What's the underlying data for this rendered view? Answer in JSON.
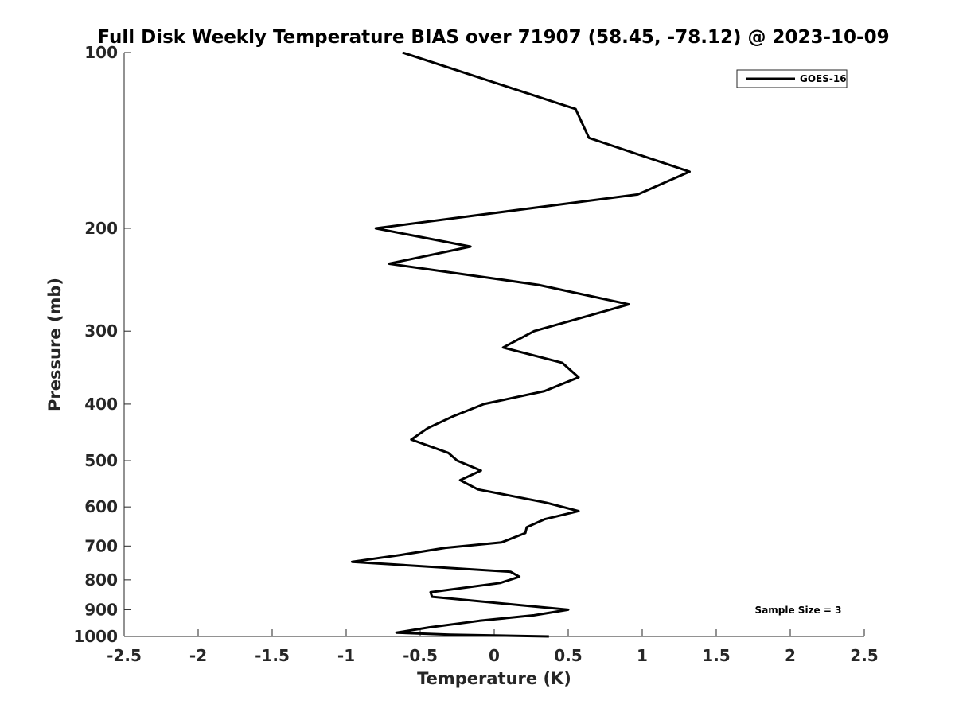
{
  "chart_data": {
    "type": "line",
    "title": "Full Disk Weekly Temperature BIAS over 71907 (58.45, -78.12) @ 2023-10-09",
    "xlabel": "Temperature (K)",
    "ylabel": "Pressure (mb)",
    "xlim": [
      -2.5,
      2.5
    ],
    "ylim": [
      100,
      1000
    ],
    "y_scale": "log",
    "y_direction": "reversed",
    "grid": false,
    "legend_position": "top-right",
    "x_ticks": [
      -2.5,
      -2,
      -1.5,
      -1,
      -0.5,
      0,
      0.5,
      1,
      1.5,
      2,
      2.5
    ],
    "x_tick_labels": [
      "-2.5",
      "-2",
      "-1.5",
      "-1",
      "-0.5",
      "0",
      "0.5",
      "1",
      "1.5",
      "2",
      "2.5"
    ],
    "y_ticks": [
      100,
      200,
      300,
      400,
      500,
      600,
      700,
      800,
      900,
      1000
    ],
    "y_tick_labels": [
      "100",
      "200",
      "300",
      "400",
      "500",
      "600",
      "700",
      "800",
      "900",
      "1000"
    ],
    "annotation": "Sample Size = 3",
    "series": [
      {
        "name": "GOES-16",
        "color": "#000000",
        "points": [
          {
            "x": -0.62,
            "p": 100
          },
          {
            "x": 0.55,
            "p": 125
          },
          {
            "x": 0.64,
            "p": 140
          },
          {
            "x": 1.32,
            "p": 160
          },
          {
            "x": 0.97,
            "p": 175
          },
          {
            "x": -0.8,
            "p": 200
          },
          {
            "x": -0.16,
            "p": 215
          },
          {
            "x": -0.71,
            "p": 230
          },
          {
            "x": 0.3,
            "p": 250
          },
          {
            "x": 0.91,
            "p": 270
          },
          {
            "x": 0.27,
            "p": 300
          },
          {
            "x": 0.06,
            "p": 320
          },
          {
            "x": 0.46,
            "p": 340
          },
          {
            "x": 0.57,
            "p": 360
          },
          {
            "x": 0.34,
            "p": 380
          },
          {
            "x": -0.07,
            "p": 400
          },
          {
            "x": -0.28,
            "p": 420
          },
          {
            "x": -0.45,
            "p": 440
          },
          {
            "x": -0.56,
            "p": 460
          },
          {
            "x": -0.31,
            "p": 485
          },
          {
            "x": -0.25,
            "p": 500
          },
          {
            "x": -0.09,
            "p": 520
          },
          {
            "x": -0.23,
            "p": 540
          },
          {
            "x": -0.11,
            "p": 560
          },
          {
            "x": 0.35,
            "p": 590
          },
          {
            "x": 0.57,
            "p": 610
          },
          {
            "x": 0.34,
            "p": 630
          },
          {
            "x": 0.22,
            "p": 650
          },
          {
            "x": 0.21,
            "p": 665
          },
          {
            "x": 0.05,
            "p": 690
          },
          {
            "x": -0.33,
            "p": 705
          },
          {
            "x": -0.63,
            "p": 725
          },
          {
            "x": -0.96,
            "p": 745
          },
          {
            "x": 0.11,
            "p": 775
          },
          {
            "x": 0.17,
            "p": 790
          },
          {
            "x": 0.04,
            "p": 810
          },
          {
            "x": -0.43,
            "p": 840
          },
          {
            "x": -0.42,
            "p": 855
          },
          {
            "x": 0.5,
            "p": 900
          },
          {
            "x": 0.27,
            "p": 920
          },
          {
            "x": -0.1,
            "p": 940
          },
          {
            "x": -0.44,
            "p": 965
          },
          {
            "x": -0.66,
            "p": 985
          },
          {
            "x": -0.3,
            "p": 993
          },
          {
            "x": 0.37,
            "p": 1000
          }
        ]
      }
    ]
  }
}
